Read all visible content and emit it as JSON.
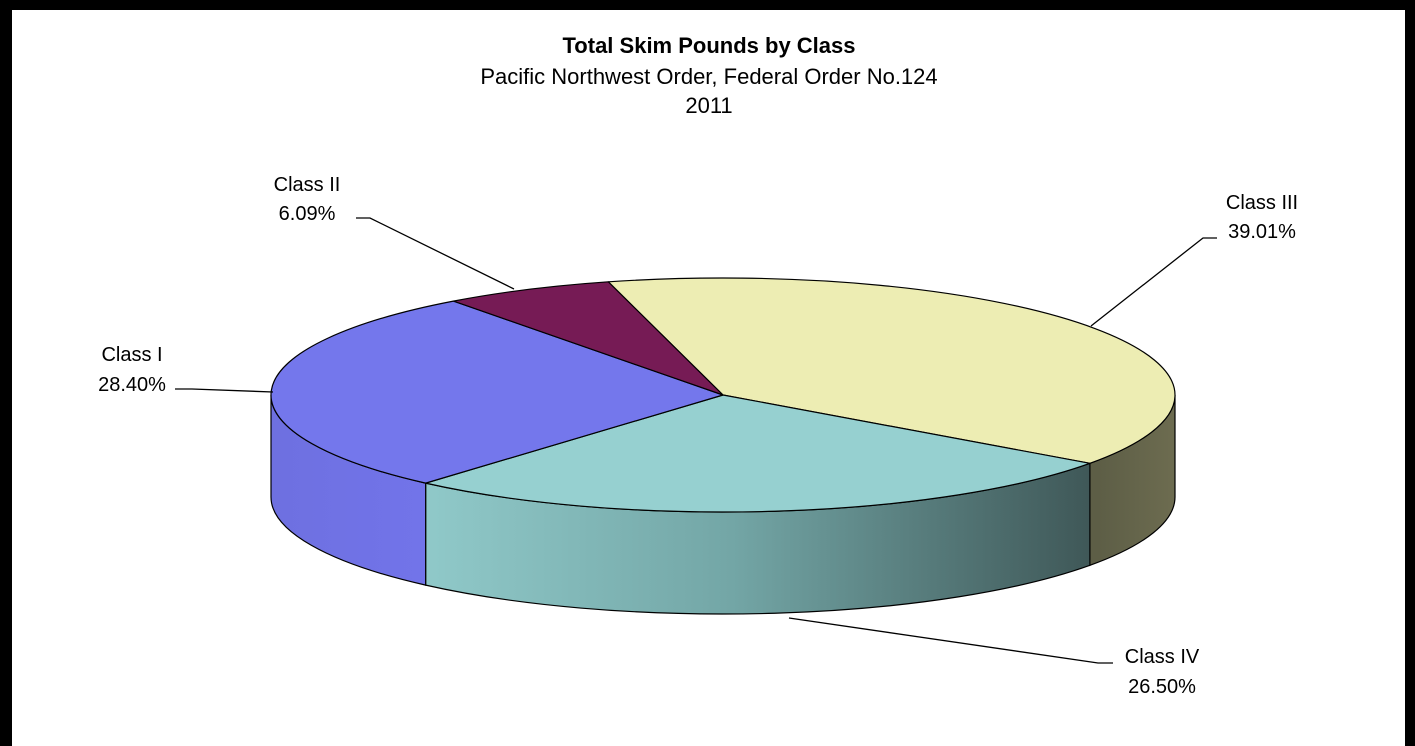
{
  "chart_data": {
    "type": "pie",
    "title": "Total Skim Pounds by Class",
    "subtitle": "Pacific Northwest Order, Federal Order No.124",
    "year": "2011",
    "slices": [
      {
        "name": "Class I",
        "value": 28.4,
        "percent_label": "28.40%",
        "color": "#7477ec",
        "side_color": "#6c6ee6"
      },
      {
        "name": "Class II",
        "value": 6.09,
        "percent_label": "6.09%",
        "color": "#761b55",
        "side_color": "#5e1444"
      },
      {
        "name": "Class III",
        "value": 39.01,
        "percent_label": "39.01%",
        "color": "#ededb3",
        "side_color": "#6c6b4e"
      },
      {
        "name": "Class IV",
        "value": 26.5,
        "percent_label": "26.50%",
        "color": "#96d0d0",
        "side_color": "#4f7c7c"
      }
    ],
    "style": "3d",
    "legend": "none"
  }
}
